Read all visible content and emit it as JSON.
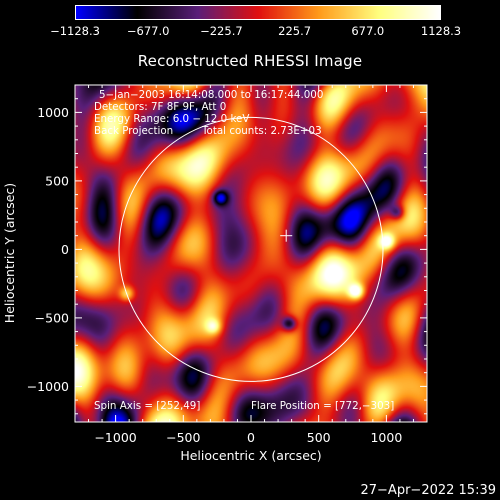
{
  "colorbar": {
    "ticks": [
      -1128.3,
      -677.0,
      -225.7,
      225.7,
      677.0,
      1128.3
    ],
    "labels": [
      "−1128.3",
      "−677.0",
      "−225.7",
      "225.7",
      "677.0",
      "1128.3"
    ],
    "range": [
      -1128.3,
      1128.3
    ],
    "colormap": [
      "#0000ff",
      "#000000",
      "#5a1f7a",
      "#e01010",
      "#ff9a1a",
      "#ffff80",
      "#ffffff"
    ]
  },
  "chart_data": {
    "type": "heatmap",
    "title": "Reconstructed RHESSI Image",
    "xlabel": "Heliocentric X (arcsec)",
    "ylabel": "Heliocentric Y (arcsec)",
    "xlim": [
      -1300,
      1300
    ],
    "ylim": [
      -1260,
      1200
    ],
    "xticks": [
      -1000,
      -500,
      0,
      500,
      1000
    ],
    "yticks": [
      -1000,
      -500,
      0,
      500,
      1000
    ],
    "xtick_labels": [
      "−1000",
      "−500",
      "0",
      "500",
      "1000"
    ],
    "ytick_labels": [
      "−1000",
      "−500",
      "0",
      "500",
      "1000"
    ],
    "solar_limb_radius": 975,
    "sun_center_marker": [
      260,
      100
    ],
    "bright_sources": [
      {
        "x": 772,
        "y": -303,
        "value": 1128
      },
      {
        "x": 1000,
        "y": 60,
        "value": 900
      },
      {
        "x": -920,
        "y": -320,
        "value": 700
      },
      {
        "x": -280,
        "y": -560,
        "value": 650
      }
    ],
    "dark_sources": [
      {
        "x": -230,
        "y": 380,
        "value": -900
      },
      {
        "x": 280,
        "y": -540,
        "value": -950
      },
      {
        "x": 1080,
        "y": 270,
        "value": -700
      }
    ]
  },
  "annotations": {
    "time": "5−Jan−2003 16:14:08.000 to 16:17:44.000",
    "detectors": "Detectors: 7F 8F 9F, Att 0",
    "energy": "Energy Range: 6.0 − 12.0 keV",
    "method": "Back Projection",
    "counts": "Total counts: 2.73E+03",
    "spin_axis": "Spin Axis = [252,49]",
    "flare_position": "Flare Position = [772,−303]"
  },
  "footer": {
    "timestamp": "27−Apr−2022 15:39"
  }
}
